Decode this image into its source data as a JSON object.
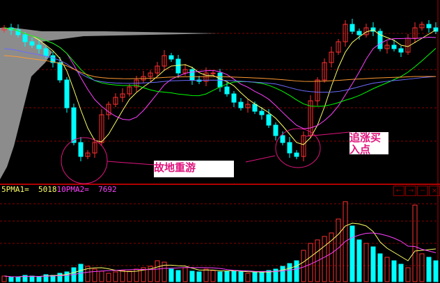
{
  "chart_data": {
    "type": "candlestick",
    "colors": {
      "up": "#ff3030",
      "down": "#00ffff",
      "ma5": "#ffff66",
      "ma10": "#ff40ff",
      "ma20": "#00ff00",
      "ma60": "#6b6bff",
      "ma120": "#ff9933",
      "grid": "#8b0000",
      "annotation": "#e0157d"
    },
    "closes": [
      225,
      222,
      215,
      205,
      200,
      195,
      185,
      175,
      150,
      110,
      60,
      40,
      45,
      60,
      100,
      115,
      125,
      130,
      140,
      150,
      155,
      160,
      170,
      185,
      180,
      160,
      165,
      150,
      148,
      160,
      160,
      140,
      130,
      118,
      110,
      115,
      105,
      100,
      85,
      70,
      60,
      45,
      40,
      70,
      120,
      150,
      175,
      190,
      205,
      230,
      220,
      215,
      225,
      220,
      195,
      200,
      195,
      190,
      210,
      225,
      230,
      225,
      220
    ],
    "volumes": [
      8,
      6,
      7,
      9,
      8,
      7,
      10,
      9,
      12,
      14,
      20,
      25,
      22,
      18,
      15,
      12,
      14,
      16,
      15,
      18,
      20,
      22,
      30,
      28,
      18,
      16,
      20,
      15,
      14,
      18,
      16,
      14,
      15,
      16,
      14,
      12,
      13,
      14,
      16,
      18,
      22,
      26,
      30,
      45,
      55,
      60,
      65,
      70,
      90,
      115,
      80,
      60,
      55,
      50,
      40,
      35,
      30,
      25,
      20,
      110,
      40,
      35,
      30
    ],
    "volume_ma": {
      "ma1_label": "5PMA1=",
      "ma1_value": "5018",
      "ma2_label": "10PMA2=",
      "ma2_value": "7692"
    },
    "annotations": [
      {
        "text": "故地重游"
      },
      {
        "text_line1": "追涨买",
        "text_line2": "入点"
      }
    ]
  },
  "controls": {
    "left": "←",
    "right": "→",
    "minimize": "−",
    "close": "×"
  }
}
